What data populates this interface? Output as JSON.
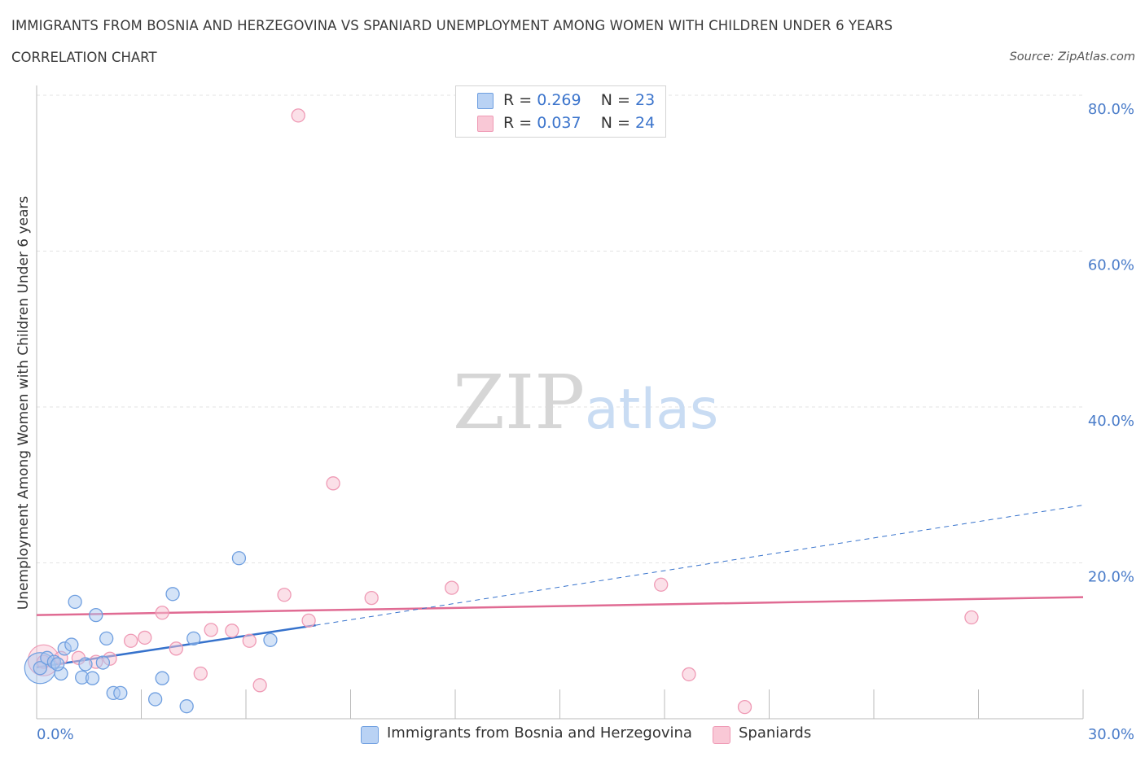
{
  "header": {
    "title": "IMMIGRANTS FROM BOSNIA AND HERZEGOVINA VS SPANIARD UNEMPLOYMENT AMONG WOMEN WITH CHILDREN UNDER 6 YEARS",
    "subtitle": "CORRELATION CHART",
    "source": "Source: ZipAtlas.com"
  },
  "watermark": {
    "zip": "ZIP",
    "atlas": "atlas"
  },
  "legend": {
    "r_label": "R =",
    "n_label": "N =",
    "series1": {
      "r": "0.269",
      "n": "23"
    },
    "series2": {
      "r": "0.037",
      "n": "24"
    }
  },
  "chart_data": {
    "type": "scatter",
    "title": "IMMIGRANTS FROM BOSNIA AND HERZEGOVINA VS SPANIARD UNEMPLOYMENT AMONG WOMEN WITH CHILDREN UNDER 6 YEARS",
    "xlabel": "",
    "ylabel": "Unemployment Among Women with Children Under 6 years",
    "xlim": [
      0,
      30
    ],
    "ylim": [
      0,
      80
    ],
    "x_tick_labels": [
      "0.0%",
      "30.0%"
    ],
    "y_ticks": [
      20,
      40,
      60,
      80
    ],
    "y_tick_labels": [
      "20.0%",
      "40.0%",
      "60.0%",
      "80.0%"
    ],
    "grid": true,
    "series": [
      {
        "name": "Immigrants from Bosnia and Herzegovina",
        "color": "#6f9fe0",
        "fill": "#aac8f0",
        "trend_color": "#3672cc",
        "trend": {
          "x0": 0,
          "y0": 6.6,
          "x_solid_end": 8,
          "y_solid_end": 12.0,
          "x1": 30,
          "y1": 27.4
        },
        "points": [
          [
            0.1,
            6.5
          ],
          [
            0.3,
            7.8
          ],
          [
            0.5,
            7.3
          ],
          [
            0.7,
            5.8
          ],
          [
            0.8,
            9.0
          ],
          [
            1.0,
            9.5
          ],
          [
            1.1,
            15.0
          ],
          [
            1.3,
            5.3
          ],
          [
            1.4,
            7.0
          ],
          [
            1.6,
            5.2
          ],
          [
            1.7,
            13.3
          ],
          [
            2.0,
            10.3
          ],
          [
            2.2,
            3.3
          ],
          [
            2.4,
            3.3
          ],
          [
            3.4,
            2.5
          ],
          [
            3.6,
            5.2
          ],
          [
            3.9,
            16.0
          ],
          [
            4.3,
            1.6
          ],
          [
            4.5,
            10.3
          ],
          [
            5.8,
            20.6
          ],
          [
            6.7,
            10.1
          ],
          [
            1.9,
            7.2
          ],
          [
            0.6,
            7.0
          ]
        ],
        "big_point": [
          0.1,
          6.5
        ]
      },
      {
        "name": "Spaniards",
        "color": "#ef9ab5",
        "fill": "#f8c2d2",
        "trend_color": "#e06b93",
        "trend": {
          "x0": 0,
          "y0": 13.3,
          "x1": 30,
          "y1": 15.6
        },
        "points": [
          [
            0.2,
            7.3
          ],
          [
            0.7,
            7.8
          ],
          [
            1.2,
            7.8
          ],
          [
            1.7,
            7.3
          ],
          [
            2.1,
            7.7
          ],
          [
            2.7,
            10.0
          ],
          [
            3.1,
            10.4
          ],
          [
            3.6,
            13.6
          ],
          [
            4.0,
            9.0
          ],
          [
            4.7,
            5.8
          ],
          [
            5.0,
            11.4
          ],
          [
            5.6,
            11.3
          ],
          [
            6.1,
            10.0
          ],
          [
            6.4,
            4.3
          ],
          [
            7.1,
            15.9
          ],
          [
            7.5,
            77.4
          ],
          [
            7.8,
            12.6
          ],
          [
            8.5,
            30.2
          ],
          [
            9.6,
            15.5
          ],
          [
            11.9,
            16.8
          ],
          [
            17.9,
            17.2
          ],
          [
            18.7,
            5.7
          ],
          [
            20.3,
            1.5
          ],
          [
            26.8,
            13.0
          ]
        ],
        "big_point": [
          0.2,
          7.5
        ]
      }
    ]
  },
  "bottom_legend": {
    "series1_label": "Immigrants from Bosnia and Herzegovina",
    "series2_label": "Spaniards"
  }
}
